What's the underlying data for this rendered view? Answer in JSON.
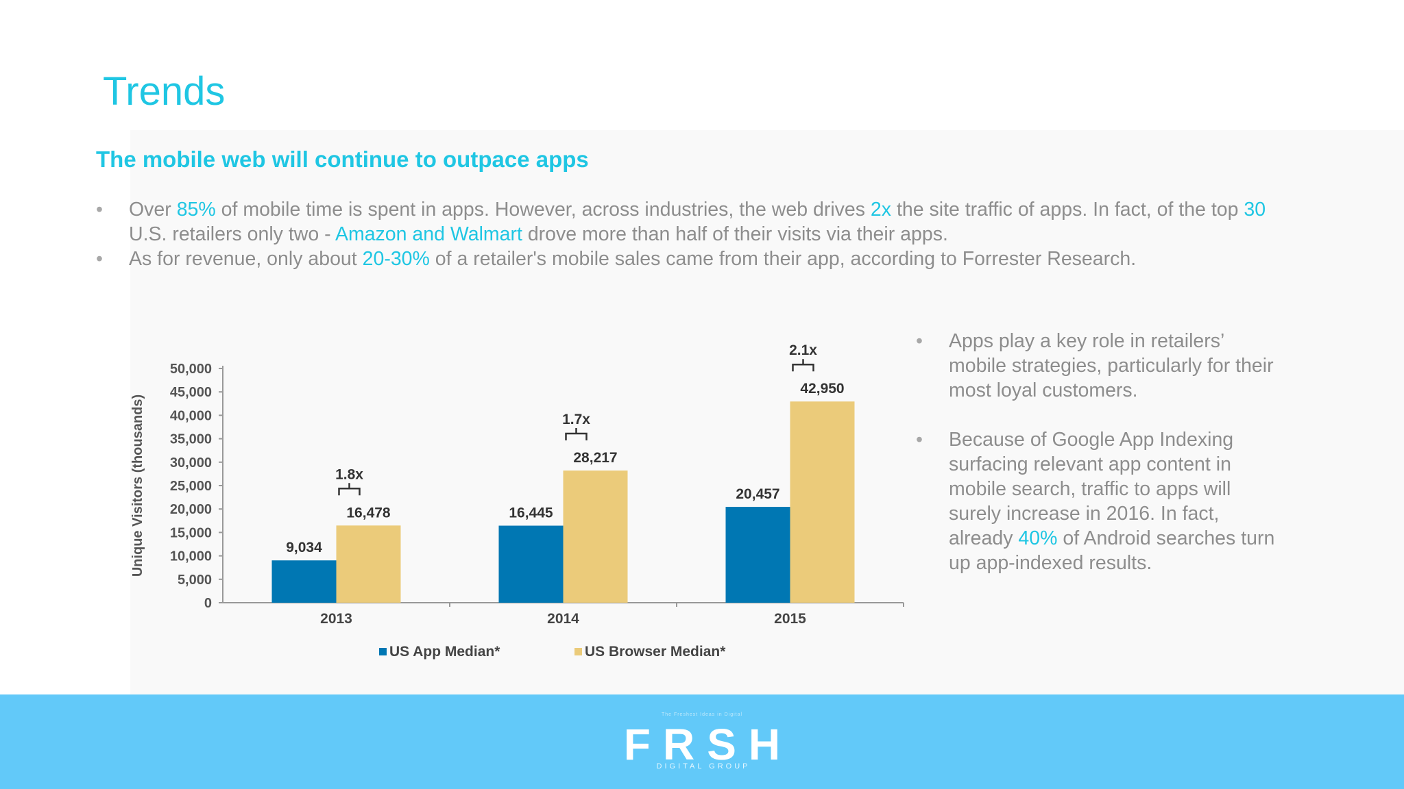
{
  "slide": {
    "title": "Trends",
    "subtitle": "The mobile web will continue to outpace apps"
  },
  "bullets": [
    {
      "segments": [
        {
          "text": "Over ",
          "highlight": false
        },
        {
          "text": "85%",
          "highlight": true
        },
        {
          "text": " of mobile time is spent in apps. However, across industries, the web drives ",
          "highlight": false
        },
        {
          "text": "2x",
          "highlight": true
        },
        {
          "text": " the site traffic of apps. In fact, of the top ",
          "highlight": false
        },
        {
          "text": "30",
          "highlight": true
        },
        {
          "text": " U.S. retailers only two - ",
          "highlight": false
        },
        {
          "text": "Amazon and Walmart",
          "highlight": true
        },
        {
          "text": " drove more than half of their visits via their apps.",
          "highlight": false
        }
      ]
    },
    {
      "segments": [
        {
          "text": "As for revenue, only about ",
          "highlight": false
        },
        {
          "text": "20-30%",
          "highlight": true
        },
        {
          "text": "  of a retailer's mobile sales came from their app, according to Forrester Research.",
          "highlight": false
        }
      ]
    }
  ],
  "side_bullets": [
    {
      "segments": [
        {
          "text": "Apps play a key role in retailers’ mobile strategies, particularly for their most loyal customers.",
          "highlight": false
        }
      ]
    },
    {
      "segments": [
        {
          "text": "Because of Google App Indexing surfacing relevant app content in mobile search, traffic to apps will surely increase in 2016. In fact, already ",
          "highlight": false
        },
        {
          "text": "40%",
          "highlight": true
        },
        {
          "text": " of Android searches turn up app-indexed results.",
          "highlight": false
        }
      ]
    }
  ],
  "chart_data": {
    "type": "bar",
    "title": "",
    "xlabel": "",
    "ylabel": "Unique Visitors (thousands)",
    "ylim": [
      0,
      50000
    ],
    "yticks": [
      "0",
      "5,000",
      "10,000",
      "15,000",
      "20,000",
      "25,000",
      "30,000",
      "35,000",
      "40,000",
      "45,000",
      "50,000"
    ],
    "categories": [
      "2013",
      "2014",
      "2015"
    ],
    "series": [
      {
        "name": "US App Median*",
        "values": [
          9034,
          16445,
          20457
        ],
        "labels": [
          "9,034",
          "16,445",
          "20,457"
        ],
        "color": "#0077b3"
      },
      {
        "name": "US Browser Median*",
        "values": [
          16478,
          28217,
          42950
        ],
        "labels": [
          "16,478",
          "28,217",
          "42,950"
        ],
        "color": "#ebcb7a"
      }
    ],
    "ratios": [
      "1.8x",
      "1.7x",
      "2.1x"
    ],
    "legend": "bottom",
    "grid": false
  },
  "footer": {
    "tagline": "The Freshest Ideas in Digital",
    "logo": "FRSH",
    "logo_sub": "DIGITAL GROUP",
    "background": "#62c9f9"
  },
  "colors": {
    "accent": "#1fc6e3",
    "body_text": "#8d8d8d"
  }
}
